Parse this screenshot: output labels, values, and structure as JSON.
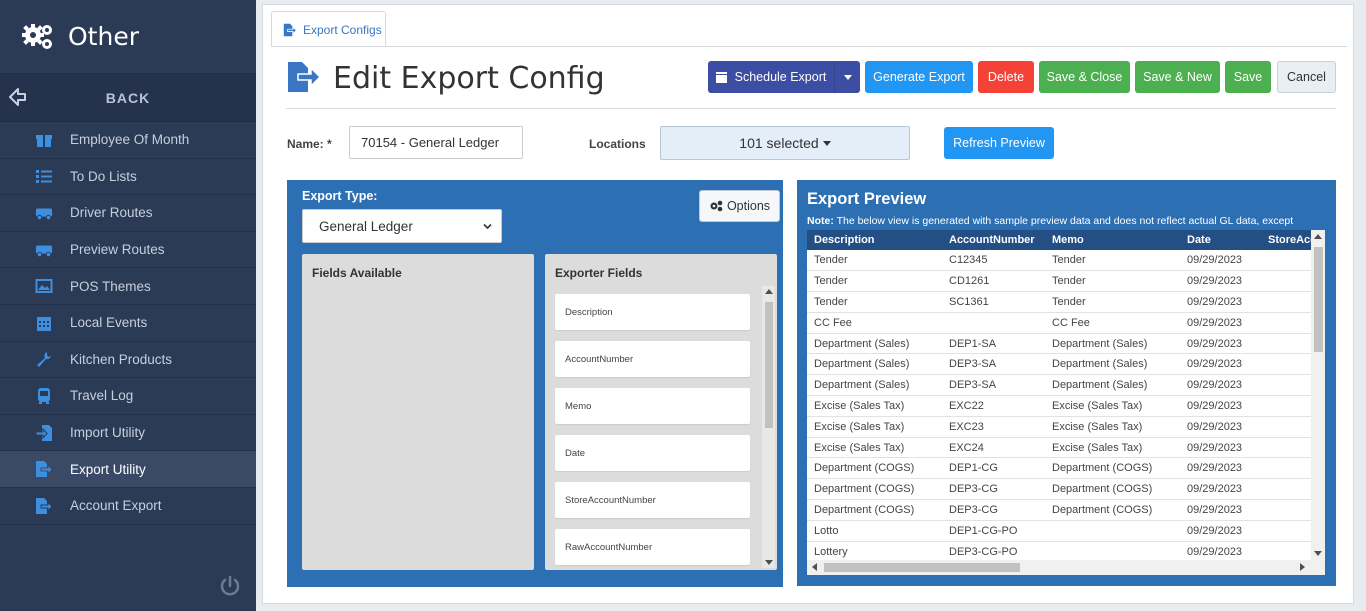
{
  "sidebar": {
    "title": "Other",
    "back_label": "BACK",
    "items": [
      {
        "label": "Employee Of Month",
        "icon": "gift-icon"
      },
      {
        "label": "To Do Lists",
        "icon": "list-icon"
      },
      {
        "label": "Driver Routes",
        "icon": "truck-icon"
      },
      {
        "label": "Preview Routes",
        "icon": "truck-icon"
      },
      {
        "label": "POS Themes",
        "icon": "image-icon"
      },
      {
        "label": "Local Events",
        "icon": "calendar-icon"
      },
      {
        "label": "Kitchen Products",
        "icon": "wrench-icon"
      },
      {
        "label": "Travel Log",
        "icon": "bus-icon"
      },
      {
        "label": "Import Utility",
        "icon": "import-icon"
      },
      {
        "label": "Export Utility",
        "icon": "export-icon"
      },
      {
        "label": "Account Export",
        "icon": "export-icon"
      }
    ],
    "active_item": "Export Utility"
  },
  "tab": {
    "label": "Export Configs"
  },
  "header": {
    "title": "Edit Export Config",
    "buttons": {
      "schedule": "Schedule Export",
      "generate": "Generate Export",
      "delete": "Delete",
      "save_close": "Save & Close",
      "save_new": "Save & New",
      "save": "Save",
      "cancel": "Cancel"
    }
  },
  "form": {
    "name_label": "Name: *",
    "name_value": "70154 - General Ledger",
    "locations_label": "Locations",
    "locations_value": "101 selected",
    "refresh_label": "Refresh Preview"
  },
  "config": {
    "export_type_label": "Export Type:",
    "export_type_value": "General Ledger",
    "options_label": "Options",
    "fields_available_title": "Fields Available",
    "exporter_fields_title": "Exporter Fields",
    "exporter_fields": [
      "Description",
      "AccountNumber",
      "Memo",
      "Date",
      "StoreAccountNumber",
      "RawAccountNumber"
    ]
  },
  "preview": {
    "title": "Export Preview",
    "note_bold": "Note:",
    "note_text": " The below view is generated with sample preview data and does not reflect actual GL data, except",
    "columns": [
      "Description",
      "AccountNumber",
      "Memo",
      "Date",
      "StoreAcc"
    ],
    "rows": [
      [
        "Tender",
        "C12345",
        "Tender",
        "09/29/2023",
        ""
      ],
      [
        "Tender",
        "CD1261",
        "Tender",
        "09/29/2023",
        ""
      ],
      [
        "Tender",
        "SC1361",
        "Tender",
        "09/29/2023",
        ""
      ],
      [
        "CC Fee",
        "",
        "CC Fee",
        "09/29/2023",
        ""
      ],
      [
        "Department (Sales)",
        "DEP1-SA",
        "Department (Sales)",
        "09/29/2023",
        ""
      ],
      [
        "Department (Sales)",
        "DEP3-SA",
        "Department (Sales)",
        "09/29/2023",
        ""
      ],
      [
        "Department (Sales)",
        "DEP3-SA",
        "Department (Sales)",
        "09/29/2023",
        ""
      ],
      [
        "Excise (Sales Tax)",
        "EXC22",
        "Excise (Sales Tax)",
        "09/29/2023",
        ""
      ],
      [
        "Excise (Sales Tax)",
        "EXC23",
        "Excise (Sales Tax)",
        "09/29/2023",
        ""
      ],
      [
        "Excise (Sales Tax)",
        "EXC24",
        "Excise (Sales Tax)",
        "09/29/2023",
        ""
      ],
      [
        "Department (COGS)",
        "DEP1-CG",
        "Department (COGS)",
        "09/29/2023",
        ""
      ],
      [
        "Department (COGS)",
        "DEP3-CG",
        "Department (COGS)",
        "09/29/2023",
        ""
      ],
      [
        "Department (COGS)",
        "DEP3-CG",
        "Department (COGS)",
        "09/29/2023",
        ""
      ],
      [
        "Lotto",
        "DEP1-CG-PO",
        "",
        "09/29/2023",
        ""
      ],
      [
        "Lottery",
        "DEP3-CG-PO",
        "",
        "09/29/2023",
        ""
      ]
    ]
  },
  "colors": {
    "sidebar_bg": "#2b3a55",
    "panel_blue": "#2d6fb3",
    "primary": "#2196f3",
    "danger": "#f44336",
    "success": "#4caf50",
    "schedule": "#3c4ea3"
  }
}
